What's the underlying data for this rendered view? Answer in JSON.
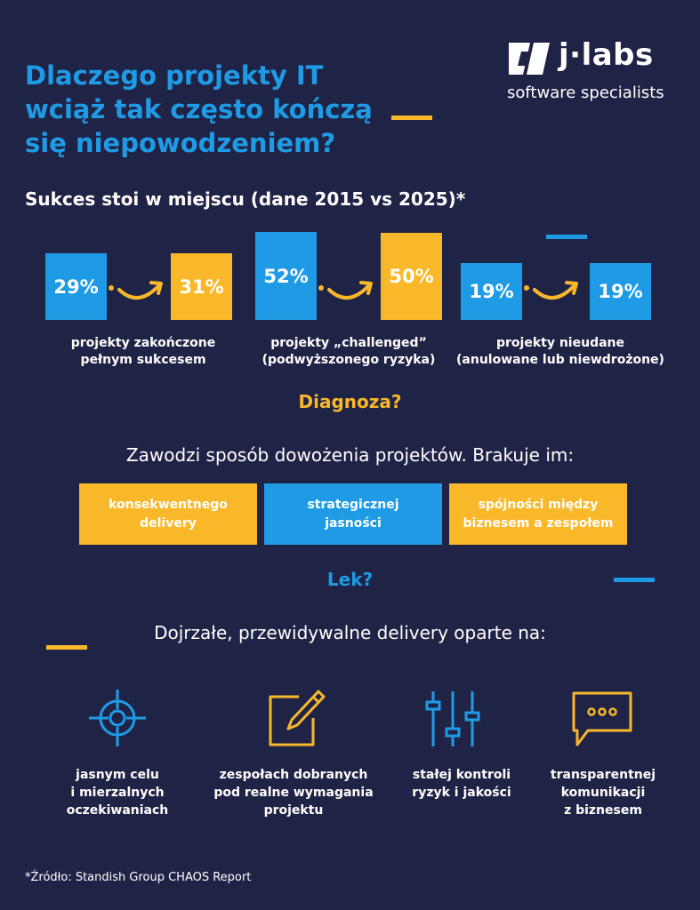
{
  "title": {
    "lines": [
      "Dlaczego projekty IT",
      "wciąż tak często kończą",
      "się niepowodzeniem?"
    ]
  },
  "logo": {
    "name": "j·labs",
    "tagline": "software specialists"
  },
  "stats": {
    "heading": "Sukces stoi w miejscu (dane 2015 vs 2025)*",
    "groups": [
      {
        "from": "29%",
        "to": "31%",
        "label_line1": "projekty zakończone",
        "label_line2": "pełnym sukcesem"
      },
      {
        "from": "52%",
        "to": "50%",
        "label_line1": "projekty „challenged”",
        "label_line2": "(podwyższonego ryzyka)"
      },
      {
        "from": "19%",
        "to": "19%",
        "label_line1": "projekty nieudane",
        "label_line2": "(anulowane lub niewdrożone)"
      }
    ]
  },
  "diagnosis": {
    "heading": "Diagnoza?",
    "lead": "Zawodzi sposób dowożenia projektów. Brakuje im:",
    "needs": [
      {
        "line1": "konsekwentnego",
        "line2": "delivery"
      },
      {
        "line1": "strategicznej",
        "line2": "jasności"
      },
      {
        "line1": "spójności między",
        "line2": "biznesem a zespołem"
      }
    ]
  },
  "cure": {
    "heading": "Lek?",
    "lead": "Dojrzałe, przewidywalne delivery oparte na:",
    "pillars": [
      {
        "icon": "target-icon",
        "line1": "jasnym celu",
        "line2": "i mierzalnych",
        "line3": "oczekiwaniach"
      },
      {
        "icon": "edit-pencil-icon",
        "line1": "zespołach dobranych",
        "line2": "pod realne wymagania",
        "line3": "projektu"
      },
      {
        "icon": "sliders-icon",
        "line1": "stałej kontroli",
        "line2": "ryzyk i jakości",
        "line3": ""
      },
      {
        "icon": "chat-bubble-icon",
        "line1": "transparentnej",
        "line2": "komunikacji",
        "line3": "z biznesem"
      }
    ]
  },
  "footnote": "*Źródło: Standish Group CHAOS Report",
  "colors": {
    "background": "#1f2446",
    "blue": "#1f9be6",
    "yellow": "#f9b82a",
    "white": "#ffffff"
  }
}
